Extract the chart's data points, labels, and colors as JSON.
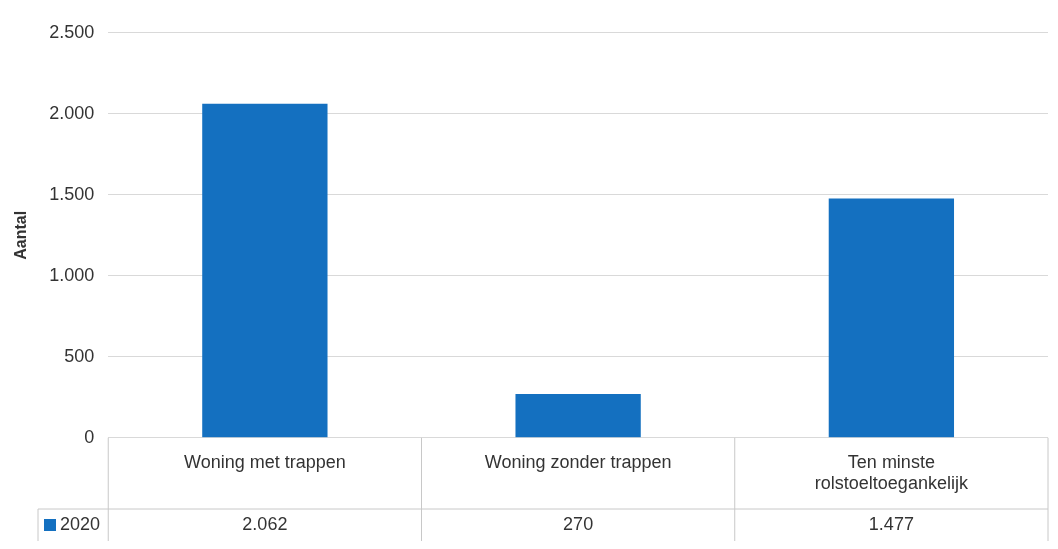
{
  "chart_data": {
    "type": "bar",
    "ylabel": "Aantal",
    "categories": [
      "Woning met trappen",
      "Woning zonder trappen",
      "Ten minste rolstoeltoegankelijk"
    ],
    "series": [
      {
        "name": "2020",
        "color": "#1470c0",
        "values": [
          2062,
          270,
          1477
        ],
        "value_labels": [
          "2.062",
          "270",
          "1.477"
        ]
      }
    ],
    "ylim": [
      0,
      2500
    ],
    "yticks": [
      {
        "value": 0,
        "label": "0"
      },
      {
        "value": 500,
        "label": "500"
      },
      {
        "value": 1000,
        "label": "1.000"
      },
      {
        "value": 1500,
        "label": "1.500"
      },
      {
        "value": 2000,
        "label": "2.000"
      },
      {
        "value": 2500,
        "label": "2.500"
      }
    ],
    "grid": "y",
    "legend": "bottom"
  }
}
